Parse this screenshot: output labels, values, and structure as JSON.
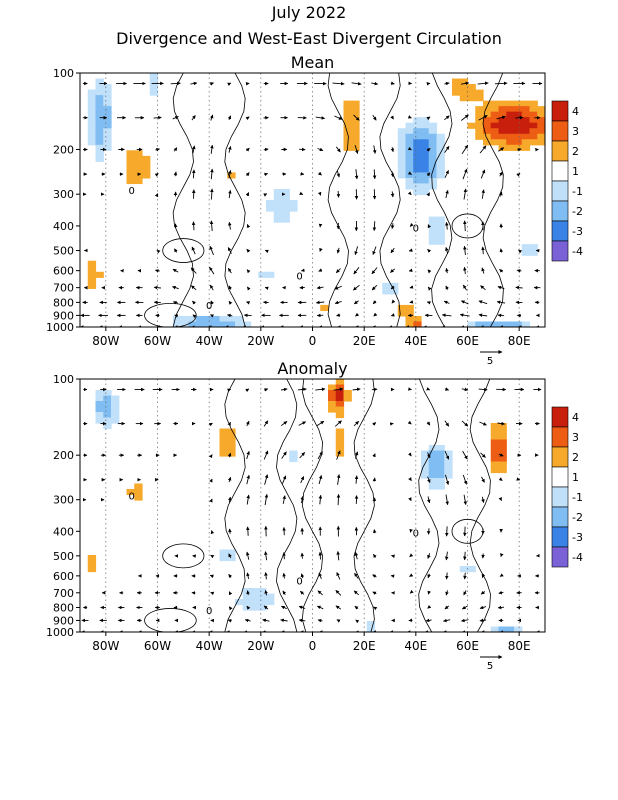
{
  "figure": {
    "title": "July 2022",
    "subtitle": "Divergence and West-East Divergent Circulation"
  },
  "colors": {
    "div_4": "#c81e0c",
    "div_3": "#ee5d14",
    "div_2": "#f6a92a",
    "div_1_white": "#ffffff",
    "conv_1": "#c1e0fa",
    "conv_2": "#80bdf2",
    "conv_3": "#3a83e6",
    "conv_4": "#7a62d6",
    "contour": "#000000",
    "vector": "#000000"
  },
  "chart_data": [
    {
      "type": "heatmap",
      "panel": "mean",
      "title": "Mean",
      "x_ticks": [
        "80W",
        "60W",
        "40W",
        "20W",
        "0",
        "20E",
        "40E",
        "60E",
        "80E"
      ],
      "x_tick_lon": [
        -80,
        -60,
        -40,
        -20,
        0,
        20,
        40,
        60,
        80
      ],
      "x_range": [
        -90,
        90
      ],
      "y_ticks": [
        "100",
        "200",
        "300",
        "400",
        "500",
        "600",
        "700",
        "800",
        "900",
        "1000"
      ],
      "y_tick_hpa": [
        100,
        200,
        300,
        400,
        500,
        600,
        700,
        800,
        900,
        1000
      ],
      "y_range": [
        100,
        1000
      ],
      "y_scale": "log",
      "grid": "dotted-vertical",
      "colorbar": {
        "levels": [
          "4",
          "3",
          "2",
          "1",
          "-1",
          "-2",
          "-3",
          "-4"
        ],
        "placement": "right"
      },
      "reference_vector": "5",
      "contour_labels": [
        "0",
        "0",
        "0",
        "0"
      ],
      "regions": [
        {
          "lon": 78,
          "p": 160,
          "sx": 16,
          "sy": 0.22,
          "v": 4.4
        },
        {
          "lon": 58,
          "p": 115,
          "sx": 10,
          "sy": 0.14,
          "v": 2.0
        },
        {
          "lon": 15,
          "p": 160,
          "sx": 6,
          "sy": 0.32,
          "v": 2.6
        },
        {
          "lon": -68,
          "p": 235,
          "sx": 6,
          "sy": 0.25,
          "v": 2.4
        },
        {
          "lon": -85,
          "p": 620,
          "sx": 5,
          "sy": 0.2,
          "v": 2.0
        },
        {
          "lon": -32,
          "p": 250,
          "sx": 3,
          "sy": 0.12,
          "v": 1.6
        },
        {
          "lon": 5,
          "p": 850,
          "sx": 4,
          "sy": 0.1,
          "v": 1.6
        },
        {
          "lon": 35,
          "p": 850,
          "sx": 5,
          "sy": 0.12,
          "v": 2.0
        },
        {
          "lon": 40,
          "p": 960,
          "sx": 4,
          "sy": 0.05,
          "v": 3.2
        },
        {
          "lon": 42,
          "p": 210,
          "sx": 9,
          "sy": 0.33,
          "v": -3.2
        },
        {
          "lon": 48,
          "p": 420,
          "sx": 5,
          "sy": 0.18,
          "v": -1.8
        },
        {
          "lon": -82,
          "p": 150,
          "sx": 5,
          "sy": 0.4,
          "v": -2.4
        },
        {
          "lon": -12,
          "p": 330,
          "sx": 7,
          "sy": 0.22,
          "v": -1.6
        },
        {
          "lon": -18,
          "p": 620,
          "sx": 4,
          "sy": 0.08,
          "v": -1.6
        },
        {
          "lon": -40,
          "p": 960,
          "sx": 16,
          "sy": 0.06,
          "v": -2.6
        },
        {
          "lon": 72,
          "p": 980,
          "sx": 14,
          "sy": 0.04,
          "v": -2.4
        },
        {
          "lon": -62,
          "p": 110,
          "sx": 4,
          "sy": 0.15,
          "v": -1.4
        },
        {
          "lon": 85,
          "p": 500,
          "sx": 5,
          "sy": 0.1,
          "v": -1.5
        },
        {
          "lon": 30,
          "p": 700,
          "sx": 5,
          "sy": 0.12,
          "v": -1.5
        }
      ],
      "flow": {
        "upper_u": 1.0,
        "lower_u": -0.8,
        "omega_lon": [
          -40,
          20,
          60
        ],
        "omega_sign": [
          1,
          -1,
          1
        ]
      }
    },
    {
      "type": "heatmap",
      "panel": "anomaly",
      "title": "Anomaly",
      "x_ticks": [
        "80W",
        "60W",
        "40W",
        "20W",
        "0",
        "20E",
        "40E",
        "60E",
        "80E"
      ],
      "x_tick_lon": [
        -80,
        -60,
        -40,
        -20,
        0,
        20,
        40,
        60,
        80
      ],
      "x_range": [
        -90,
        90
      ],
      "y_ticks": [
        "100",
        "200",
        "300",
        "400",
        "500",
        "600",
        "700",
        "800",
        "900",
        "1000"
      ],
      "y_tick_hpa": [
        100,
        200,
        300,
        400,
        500,
        600,
        700,
        800,
        900,
        1000
      ],
      "y_range": [
        100,
        1000
      ],
      "y_scale": "log",
      "grid": "dotted-vertical",
      "colorbar": {
        "levels": [
          "4",
          "3",
          "2",
          "1",
          "-1",
          "-2",
          "-3",
          "-4"
        ],
        "placement": "right"
      },
      "reference_vector": "5",
      "contour_labels": [
        "0",
        "0",
        "0",
        "0"
      ],
      "regions": [
        {
          "lon": 10,
          "p": 115,
          "sx": 4,
          "sy": 0.15,
          "v": 3.6
        },
        {
          "lon": 10,
          "p": 180,
          "sx": 5,
          "sy": 0.3,
          "v": 1.8
        },
        {
          "lon": 72,
          "p": 190,
          "sx": 5,
          "sy": 0.3,
          "v": 3.0
        },
        {
          "lon": -68,
          "p": 280,
          "sx": 5,
          "sy": 0.14,
          "v": 2.0
        },
        {
          "lon": -33,
          "p": 180,
          "sx": 5,
          "sy": 0.3,
          "v": 2.0
        },
        {
          "lon": -12,
          "p": 130,
          "sx": 3,
          "sy": 0.2,
          "v": 1.6
        },
        {
          "lon": -85,
          "p": 540,
          "sx": 4,
          "sy": 0.15,
          "v": 1.8
        },
        {
          "lon": 22,
          "p": 120,
          "sx": 3,
          "sy": 0.12,
          "v": 1.5
        },
        {
          "lon": -80,
          "p": 130,
          "sx": 6,
          "sy": 0.2,
          "v": -2.2
        },
        {
          "lon": 48,
          "p": 220,
          "sx": 6,
          "sy": 0.22,
          "v": -2.5
        },
        {
          "lon": -22,
          "p": 750,
          "sx": 9,
          "sy": 0.15,
          "v": -1.7
        },
        {
          "lon": -33,
          "p": 500,
          "sx": 3,
          "sy": 0.1,
          "v": -1.5
        },
        {
          "lon": -8,
          "p": 200,
          "sx": 3,
          "sy": 0.1,
          "v": -1.4
        },
        {
          "lon": 75,
          "p": 980,
          "sx": 8,
          "sy": 0.04,
          "v": -2.2
        },
        {
          "lon": 22,
          "p": 950,
          "sx": 4,
          "sy": 0.05,
          "v": -1.5
        },
        {
          "lon": 60,
          "p": 560,
          "sx": 3,
          "sy": 0.1,
          "v": -1.3
        }
      ],
      "flow": {
        "upper_u": 0.8,
        "lower_u": -0.6,
        "omega_lon": [
          -20,
          10,
          55
        ],
        "omega_sign": [
          1,
          1,
          -1
        ]
      }
    }
  ]
}
